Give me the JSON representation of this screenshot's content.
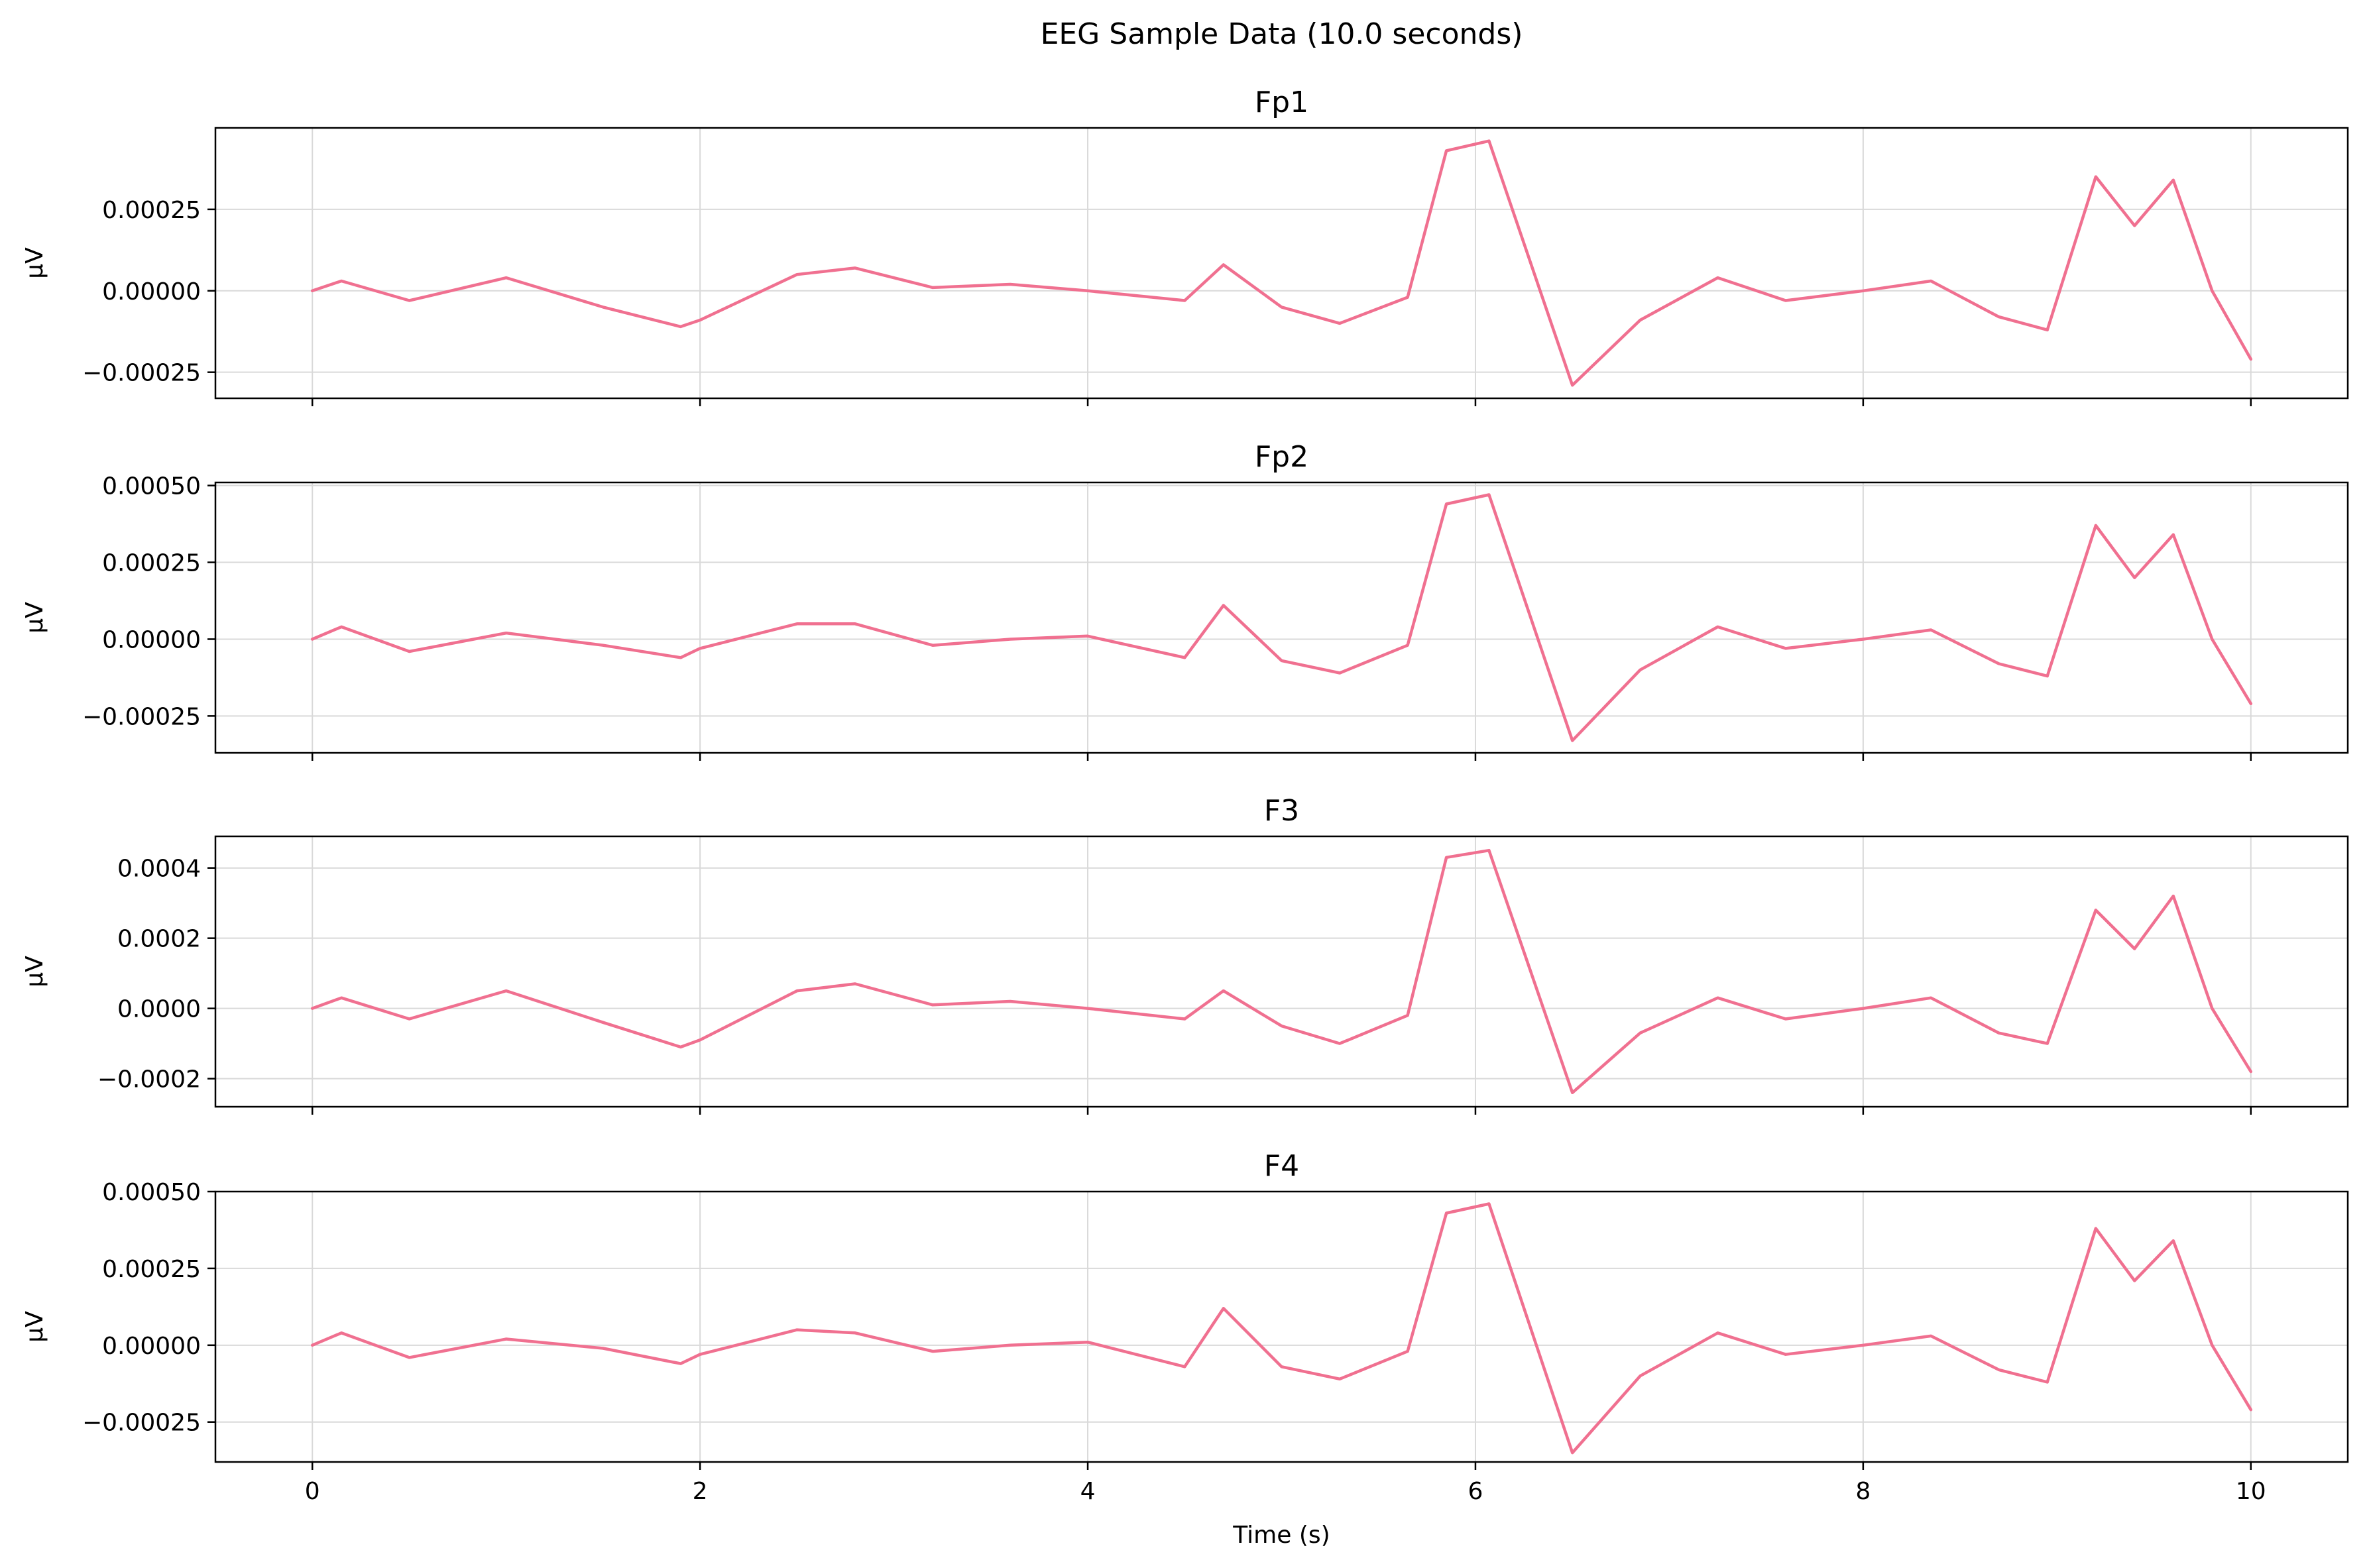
{
  "chart_data": {
    "type": "line",
    "title": "EEG Sample Data (10.0 seconds)",
    "xlabel": "Time (s)",
    "xlim": [
      -0.5,
      10.5
    ],
    "xticks": [
      0,
      2,
      4,
      6,
      8,
      10
    ],
    "xtick_labels": [
      "0",
      "2",
      "4",
      "6",
      "8",
      "10"
    ],
    "grid": true,
    "line_color": "#f07090",
    "panels": [
      {
        "name": "Fp1",
        "ylabel": "µV",
        "ylim": [
          -0.00033,
          0.0005
        ],
        "yticks": [
          -0.00025,
          0.0,
          0.00025
        ],
        "ytick_labels": [
          "−0.00025",
          "0.00000",
          "0.00025"
        ],
        "x": [
          0,
          0.15,
          0.5,
          1.0,
          1.5,
          1.9,
          2.0,
          2.5,
          2.8,
          3.2,
          3.6,
          4.0,
          4.5,
          4.7,
          5.0,
          5.3,
          5.65,
          5.85,
          6.07,
          6.5,
          6.85,
          7.25,
          7.6,
          8.0,
          8.35,
          8.7,
          8.95,
          9.2,
          9.4,
          9.6,
          9.8,
          10.0
        ],
        "y": [
          0.0,
          3e-05,
          -3e-05,
          4e-05,
          -5e-05,
          -0.00011,
          -9e-05,
          5e-05,
          7e-05,
          1e-05,
          2e-05,
          0.0,
          -3e-05,
          8e-05,
          -5e-05,
          -0.0001,
          -2e-05,
          0.00043,
          0.00046,
          -0.00029,
          -9e-05,
          4e-05,
          -3e-05,
          0.0,
          3e-05,
          -8e-05,
          -0.00012,
          0.00035,
          0.0002,
          0.00034,
          0.0,
          -0.00021
        ]
      },
      {
        "name": "Fp2",
        "ylabel": "µV",
        "ylim": [
          -0.00037,
          0.00051
        ],
        "yticks": [
          -0.00025,
          0.0,
          0.00025,
          0.0005
        ],
        "ytick_labels": [
          "−0.00025",
          "0.00000",
          "0.00025",
          "0.00050"
        ],
        "x": [
          0,
          0.15,
          0.5,
          1.0,
          1.5,
          1.9,
          2.0,
          2.5,
          2.8,
          3.2,
          3.6,
          4.0,
          4.5,
          4.7,
          5.0,
          5.3,
          5.65,
          5.85,
          6.07,
          6.5,
          6.85,
          7.25,
          7.6,
          8.0,
          8.35,
          8.7,
          8.95,
          9.2,
          9.4,
          9.6,
          9.8,
          10.0
        ],
        "y": [
          0.0,
          4e-05,
          -4e-05,
          2e-05,
          -2e-05,
          -6e-05,
          -3e-05,
          5e-05,
          5e-05,
          -2e-05,
          0.0,
          1e-05,
          -6e-05,
          0.00011,
          -7e-05,
          -0.00011,
          -2e-05,
          0.00044,
          0.00047,
          -0.00033,
          -0.0001,
          4e-05,
          -3e-05,
          0.0,
          3e-05,
          -8e-05,
          -0.00012,
          0.00037,
          0.0002,
          0.00034,
          0.0,
          -0.00021
        ]
      },
      {
        "name": "F3",
        "ylabel": "µV",
        "ylim": [
          -0.00028,
          0.00049
        ],
        "yticks": [
          -0.0002,
          0.0,
          0.0002,
          0.0004
        ],
        "ytick_labels": [
          "−0.0002",
          "0.0000",
          "0.0002",
          "0.0004"
        ],
        "x": [
          0,
          0.15,
          0.5,
          1.0,
          1.5,
          1.9,
          2.0,
          2.5,
          2.8,
          3.2,
          3.6,
          4.0,
          4.5,
          4.7,
          5.0,
          5.3,
          5.65,
          5.85,
          6.07,
          6.5,
          6.85,
          7.25,
          7.6,
          8.0,
          8.35,
          8.7,
          8.95,
          9.2,
          9.4,
          9.6,
          9.8,
          10.0
        ],
        "y": [
          0.0,
          3e-05,
          -3e-05,
          5e-05,
          -4e-05,
          -0.00011,
          -9e-05,
          5e-05,
          7e-05,
          1e-05,
          2e-05,
          0.0,
          -3e-05,
          5e-05,
          -5e-05,
          -0.0001,
          -2e-05,
          0.00043,
          0.00045,
          -0.00024,
          -7e-05,
          3e-05,
          -3e-05,
          0.0,
          3e-05,
          -7e-05,
          -0.0001,
          0.00028,
          0.00017,
          0.00032,
          0.0,
          -0.00018
        ]
      },
      {
        "name": "F4",
        "ylabel": "µV",
        "ylim": [
          -0.00038,
          0.0005
        ],
        "yticks": [
          -0.00025,
          0.0,
          0.00025,
          0.0005
        ],
        "ytick_labels": [
          "−0.00025",
          "0.00000",
          "0.00025",
          "0.00050"
        ],
        "x": [
          0,
          0.15,
          0.5,
          1.0,
          1.5,
          1.9,
          2.0,
          2.5,
          2.8,
          3.2,
          3.6,
          4.0,
          4.5,
          4.7,
          5.0,
          5.3,
          5.65,
          5.85,
          6.07,
          6.5,
          6.85,
          7.25,
          7.6,
          8.0,
          8.35,
          8.7,
          8.95,
          9.2,
          9.4,
          9.6,
          9.8,
          10.0
        ],
        "y": [
          0.0,
          4e-05,
          -4e-05,
          2e-05,
          -1e-05,
          -6e-05,
          -3e-05,
          5e-05,
          4e-05,
          -2e-05,
          0.0,
          1e-05,
          -7e-05,
          0.00012,
          -7e-05,
          -0.00011,
          -2e-05,
          0.00043,
          0.00046,
          -0.00035,
          -0.0001,
          4e-05,
          -3e-05,
          0.0,
          3e-05,
          -8e-05,
          -0.00012,
          0.00038,
          0.00021,
          0.00034,
          0.0,
          -0.00021
        ]
      }
    ]
  }
}
